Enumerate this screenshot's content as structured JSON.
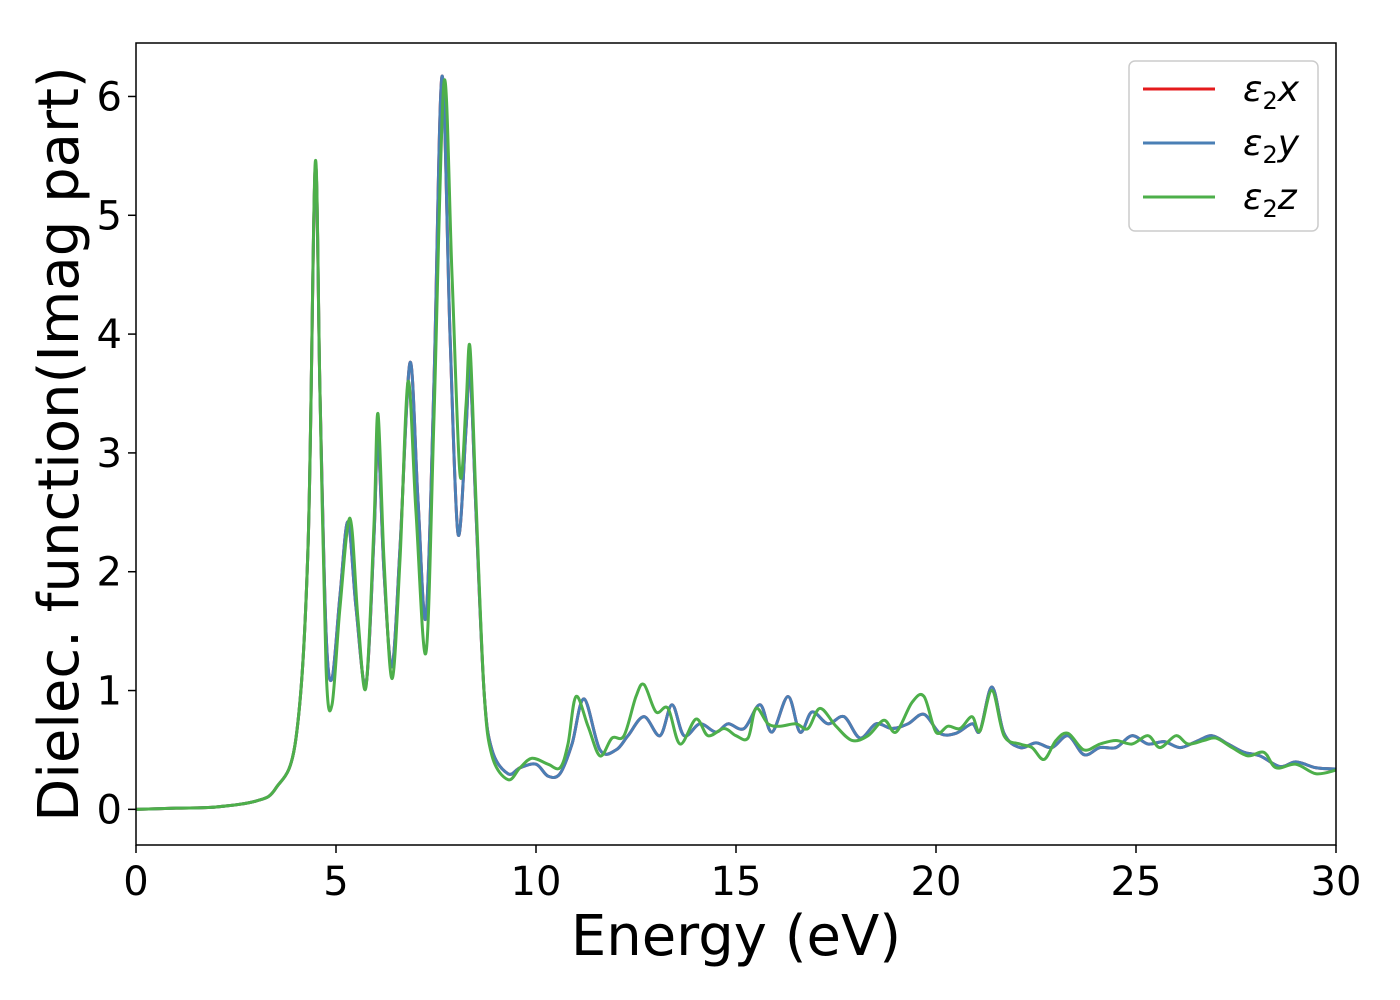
{
  "chart_data": {
    "type": "line",
    "title": "",
    "xlabel": "Energy (eV)",
    "ylabel": "Dielec. function(Imag part)",
    "xlim": [
      0,
      30
    ],
    "ylim": [
      -0.3,
      6.45
    ],
    "xticks": [
      0,
      5,
      10,
      15,
      20,
      25,
      30
    ],
    "xtick_labels": [
      "0",
      "5",
      "10",
      "15",
      "20",
      "25",
      "30"
    ],
    "yticks": [
      0,
      1,
      2,
      3,
      4,
      5,
      6
    ],
    "ytick_labels": [
      "0",
      "1",
      "2",
      "3",
      "4",
      "5",
      "6"
    ],
    "grid": false,
    "legend_position": "top-right",
    "series": [
      {
        "name": "ε2x",
        "label_main": "ε",
        "label_sub": "2",
        "label_tail": "x",
        "color": "#e41a1c",
        "points": [
          [
            0,
            0
          ],
          [
            1,
            0.01
          ],
          [
            2,
            0.02
          ],
          [
            3,
            0.07
          ],
          [
            3.5,
            0.18
          ],
          [
            4,
            0.6
          ],
          [
            4.3,
            2.2
          ],
          [
            4.48,
            5.4
          ],
          [
            4.6,
            3.5
          ],
          [
            4.75,
            1.5
          ],
          [
            4.9,
            1.1
          ],
          [
            5.1,
            1.8
          ],
          [
            5.3,
            2.42
          ],
          [
            5.5,
            1.7
          ],
          [
            5.75,
            1.05
          ],
          [
            5.95,
            2.3
          ],
          [
            6.05,
            3.12
          ],
          [
            6.2,
            2.0
          ],
          [
            6.4,
            1.2
          ],
          [
            6.6,
            2.2
          ],
          [
            6.85,
            3.76
          ],
          [
            7.05,
            2.6
          ],
          [
            7.25,
            1.62
          ],
          [
            7.45,
            3.6
          ],
          [
            7.65,
            6.17
          ],
          [
            7.85,
            4.0
          ],
          [
            8.05,
            2.32
          ],
          [
            8.25,
            3.2
          ],
          [
            8.35,
            3.72
          ],
          [
            8.5,
            2.5
          ],
          [
            8.7,
            1.0
          ],
          [
            8.9,
            0.5
          ],
          [
            9.3,
            0.3
          ],
          [
            9.6,
            0.35
          ],
          [
            10,
            0.38
          ],
          [
            10.3,
            0.28
          ],
          [
            10.6,
            0.3
          ],
          [
            10.9,
            0.55
          ],
          [
            11.2,
            0.93
          ],
          [
            11.6,
            0.5
          ],
          [
            12,
            0.5
          ],
          [
            12.3,
            0.62
          ],
          [
            12.7,
            0.78
          ],
          [
            13.1,
            0.62
          ],
          [
            13.4,
            0.88
          ],
          [
            13.7,
            0.62
          ],
          [
            14.1,
            0.72
          ],
          [
            14.5,
            0.65
          ],
          [
            14.8,
            0.72
          ],
          [
            15.2,
            0.68
          ],
          [
            15.6,
            0.88
          ],
          [
            15.9,
            0.65
          ],
          [
            16.3,
            0.95
          ],
          [
            16.6,
            0.65
          ],
          [
            16.9,
            0.82
          ],
          [
            17.3,
            0.72
          ],
          [
            17.7,
            0.78
          ],
          [
            18.1,
            0.6
          ],
          [
            18.5,
            0.72
          ],
          [
            18.9,
            0.68
          ],
          [
            19.3,
            0.72
          ],
          [
            19.7,
            0.8
          ],
          [
            20.1,
            0.64
          ],
          [
            20.5,
            0.64
          ],
          [
            20.9,
            0.72
          ],
          [
            21.1,
            0.66
          ],
          [
            21.4,
            1.03
          ],
          [
            21.7,
            0.64
          ],
          [
            22.1,
            0.52
          ],
          [
            22.5,
            0.56
          ],
          [
            22.9,
            0.52
          ],
          [
            23.3,
            0.62
          ],
          [
            23.7,
            0.46
          ],
          [
            24.1,
            0.52
          ],
          [
            24.5,
            0.52
          ],
          [
            24.9,
            0.62
          ],
          [
            25.3,
            0.55
          ],
          [
            25.7,
            0.57
          ],
          [
            26.1,
            0.52
          ],
          [
            26.5,
            0.57
          ],
          [
            26.9,
            0.62
          ],
          [
            27.3,
            0.55
          ],
          [
            27.7,
            0.48
          ],
          [
            28.1,
            0.45
          ],
          [
            28.6,
            0.36
          ],
          [
            29,
            0.4
          ],
          [
            29.5,
            0.35
          ],
          [
            30,
            0.34
          ]
        ]
      },
      {
        "name": "ε2y",
        "label_main": "ε",
        "label_sub": "2",
        "label_tail": "y",
        "color": "#4a7fb5",
        "points": [
          [
            0,
            0
          ],
          [
            1,
            0.01
          ],
          [
            2,
            0.02
          ],
          [
            3,
            0.07
          ],
          [
            3.5,
            0.18
          ],
          [
            4,
            0.6
          ],
          [
            4.3,
            2.2
          ],
          [
            4.48,
            5.4
          ],
          [
            4.6,
            3.5
          ],
          [
            4.75,
            1.5
          ],
          [
            4.9,
            1.1
          ],
          [
            5.1,
            1.8
          ],
          [
            5.3,
            2.42
          ],
          [
            5.5,
            1.7
          ],
          [
            5.75,
            1.05
          ],
          [
            5.95,
            2.3
          ],
          [
            6.05,
            3.12
          ],
          [
            6.2,
            2.0
          ],
          [
            6.4,
            1.2
          ],
          [
            6.6,
            2.2
          ],
          [
            6.85,
            3.76
          ],
          [
            7.05,
            2.6
          ],
          [
            7.25,
            1.62
          ],
          [
            7.45,
            3.6
          ],
          [
            7.65,
            6.17
          ],
          [
            7.85,
            4.0
          ],
          [
            8.05,
            2.32
          ],
          [
            8.25,
            3.2
          ],
          [
            8.35,
            3.72
          ],
          [
            8.5,
            2.5
          ],
          [
            8.7,
            1.0
          ],
          [
            8.9,
            0.5
          ],
          [
            9.3,
            0.3
          ],
          [
            9.6,
            0.35
          ],
          [
            10,
            0.38
          ],
          [
            10.3,
            0.28
          ],
          [
            10.6,
            0.3
          ],
          [
            10.9,
            0.55
          ],
          [
            11.2,
            0.93
          ],
          [
            11.6,
            0.5
          ],
          [
            12,
            0.5
          ],
          [
            12.3,
            0.62
          ],
          [
            12.7,
            0.78
          ],
          [
            13.1,
            0.62
          ],
          [
            13.4,
            0.88
          ],
          [
            13.7,
            0.62
          ],
          [
            14.1,
            0.72
          ],
          [
            14.5,
            0.65
          ],
          [
            14.8,
            0.72
          ],
          [
            15.2,
            0.68
          ],
          [
            15.6,
            0.88
          ],
          [
            15.9,
            0.65
          ],
          [
            16.3,
            0.95
          ],
          [
            16.6,
            0.65
          ],
          [
            16.9,
            0.82
          ],
          [
            17.3,
            0.72
          ],
          [
            17.7,
            0.78
          ],
          [
            18.1,
            0.6
          ],
          [
            18.5,
            0.72
          ],
          [
            18.9,
            0.68
          ],
          [
            19.3,
            0.72
          ],
          [
            19.7,
            0.8
          ],
          [
            20.1,
            0.64
          ],
          [
            20.5,
            0.64
          ],
          [
            20.9,
            0.72
          ],
          [
            21.1,
            0.66
          ],
          [
            21.4,
            1.03
          ],
          [
            21.7,
            0.64
          ],
          [
            22.1,
            0.52
          ],
          [
            22.5,
            0.56
          ],
          [
            22.9,
            0.52
          ],
          [
            23.3,
            0.62
          ],
          [
            23.7,
            0.46
          ],
          [
            24.1,
            0.52
          ],
          [
            24.5,
            0.52
          ],
          [
            24.9,
            0.62
          ],
          [
            25.3,
            0.55
          ],
          [
            25.7,
            0.57
          ],
          [
            26.1,
            0.52
          ],
          [
            26.5,
            0.57
          ],
          [
            26.9,
            0.62
          ],
          [
            27.3,
            0.55
          ],
          [
            27.7,
            0.48
          ],
          [
            28.1,
            0.45
          ],
          [
            28.6,
            0.36
          ],
          [
            29,
            0.4
          ],
          [
            29.5,
            0.35
          ],
          [
            30,
            0.34
          ]
        ]
      },
      {
        "name": "ε2z",
        "label_main": "ε",
        "label_sub": "2",
        "label_tail": "z",
        "color": "#4daf4a",
        "points": [
          [
            0,
            0
          ],
          [
            1,
            0.01
          ],
          [
            2,
            0.02
          ],
          [
            3,
            0.07
          ],
          [
            3.5,
            0.18
          ],
          [
            4,
            0.6
          ],
          [
            4.3,
            2.2
          ],
          [
            4.48,
            5.44
          ],
          [
            4.6,
            3.5
          ],
          [
            4.75,
            1.2
          ],
          [
            4.9,
            0.88
          ],
          [
            5.1,
            1.7
          ],
          [
            5.35,
            2.45
          ],
          [
            5.55,
            1.6
          ],
          [
            5.75,
            1.03
          ],
          [
            5.95,
            2.4
          ],
          [
            6.05,
            3.33
          ],
          [
            6.2,
            2.1
          ],
          [
            6.4,
            1.1
          ],
          [
            6.6,
            2.1
          ],
          [
            6.8,
            3.6
          ],
          [
            7.0,
            2.5
          ],
          [
            7.25,
            1.32
          ],
          [
            7.45,
            3.3
          ],
          [
            7.7,
            6.12
          ],
          [
            7.9,
            4.5
          ],
          [
            8.1,
            2.82
          ],
          [
            8.25,
            3.4
          ],
          [
            8.35,
            3.89
          ],
          [
            8.5,
            2.6
          ],
          [
            8.7,
            1.0
          ],
          [
            8.9,
            0.45
          ],
          [
            9.3,
            0.25
          ],
          [
            9.6,
            0.35
          ],
          [
            9.9,
            0.43
          ],
          [
            10.3,
            0.38
          ],
          [
            10.6,
            0.35
          ],
          [
            10.8,
            0.55
          ],
          [
            11.0,
            0.95
          ],
          [
            11.3,
            0.7
          ],
          [
            11.6,
            0.45
          ],
          [
            11.9,
            0.6
          ],
          [
            12.2,
            0.62
          ],
          [
            12.5,
            0.95
          ],
          [
            12.7,
            1.05
          ],
          [
            13.0,
            0.82
          ],
          [
            13.3,
            0.85
          ],
          [
            13.6,
            0.55
          ],
          [
            14.0,
            0.76
          ],
          [
            14.3,
            0.62
          ],
          [
            14.7,
            0.68
          ],
          [
            15.0,
            0.62
          ],
          [
            15.3,
            0.6
          ],
          [
            15.5,
            0.85
          ],
          [
            15.8,
            0.72
          ],
          [
            16.1,
            0.7
          ],
          [
            16.5,
            0.72
          ],
          [
            16.8,
            0.68
          ],
          [
            17.1,
            0.85
          ],
          [
            17.5,
            0.7
          ],
          [
            17.9,
            0.58
          ],
          [
            18.3,
            0.62
          ],
          [
            18.7,
            0.75
          ],
          [
            19.0,
            0.65
          ],
          [
            19.4,
            0.9
          ],
          [
            19.7,
            0.95
          ],
          [
            20.0,
            0.65
          ],
          [
            20.3,
            0.7
          ],
          [
            20.6,
            0.68
          ],
          [
            20.9,
            0.78
          ],
          [
            21.1,
            0.66
          ],
          [
            21.4,
            1.0
          ],
          [
            21.7,
            0.62
          ],
          [
            22.1,
            0.55
          ],
          [
            22.4,
            0.52
          ],
          [
            22.7,
            0.42
          ],
          [
            23.0,
            0.58
          ],
          [
            23.3,
            0.64
          ],
          [
            23.7,
            0.5
          ],
          [
            24.1,
            0.55
          ],
          [
            24.5,
            0.58
          ],
          [
            24.9,
            0.55
          ],
          [
            25.3,
            0.62
          ],
          [
            25.6,
            0.52
          ],
          [
            26.0,
            0.62
          ],
          [
            26.3,
            0.55
          ],
          [
            26.7,
            0.58
          ],
          [
            27.0,
            0.6
          ],
          [
            27.4,
            0.52
          ],
          [
            27.8,
            0.45
          ],
          [
            28.2,
            0.48
          ],
          [
            28.5,
            0.35
          ],
          [
            29,
            0.38
          ],
          [
            29.5,
            0.3
          ],
          [
            30,
            0.33
          ]
        ]
      }
    ]
  }
}
